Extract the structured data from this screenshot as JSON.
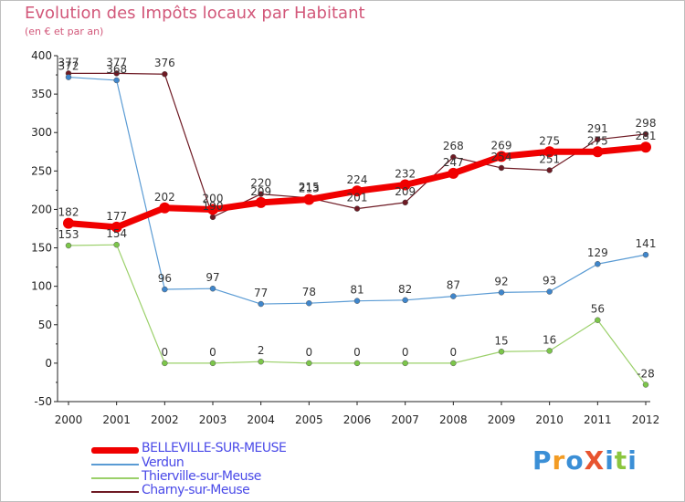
{
  "title": "Evolution des Impôts locaux par Habitant",
  "subtitle": "(en € et par an)",
  "logo": {
    "text": "ProXiti",
    "letters": [
      "P",
      "r",
      "o",
      "X",
      "i",
      "t",
      "i"
    ],
    "colors": [
      "#3b8fd6",
      "#f39c24",
      "#3b8fd6",
      "#e8542f",
      "#3b8fd6",
      "#8cc63f",
      "#3b8fd6"
    ]
  },
  "chart_data": {
    "type": "line",
    "title": "Evolution des Impôts locaux par Habitant",
    "subtitle": "(en € et par an)",
    "xlabel": "",
    "ylabel": "",
    "x": [
      "2000",
      "2001",
      "2002",
      "2003",
      "2004",
      "2005",
      "2006",
      "2007",
      "2008",
      "2009",
      "2010",
      "2011",
      "2012"
    ],
    "ylim": [
      -50,
      400
    ],
    "yticks": [
      -50,
      0,
      50,
      100,
      150,
      200,
      250,
      300,
      350,
      400
    ],
    "grid": false,
    "legend": "bottom-left",
    "series": [
      {
        "name": "Charny-sur-Meuse",
        "color": "#6e1a24",
        "point_color": "#6e1a24",
        "width": 1.2,
        "marker": 3,
        "values": [
          377,
          377,
          376,
          190,
          220,
          215,
          201,
          209,
          268,
          254,
          251,
          291,
          298
        ],
        "labels": [
          "377",
          "377",
          "376",
          "190",
          "220",
          "215",
          "201",
          "209",
          "268",
          "254",
          "251",
          "291",
          "298"
        ]
      },
      {
        "name": "Verdun",
        "color": "#5a9bd4",
        "point_color": "#3f86cc",
        "width": 1.2,
        "marker": 3,
        "values": [
          372,
          368,
          96,
          97,
          77,
          78,
          81,
          82,
          87,
          92,
          93,
          129,
          141
        ],
        "labels": [
          "372",
          "368",
          "96",
          "97",
          "77",
          "78",
          "81",
          "82",
          "87",
          "92",
          "93",
          "129",
          "141"
        ]
      },
      {
        "name": "Thierville-sur-Meuse",
        "color": "#9bd06a",
        "point_color": "#7cc64a",
        "width": 1.2,
        "marker": 3,
        "values": [
          153,
          154,
          0,
          0,
          2,
          0,
          0,
          0,
          0,
          15,
          16,
          56,
          -28
        ],
        "labels": [
          "153",
          "154",
          "0",
          "0",
          "2",
          "0",
          "0",
          "0",
          "0",
          "15",
          "16",
          "56",
          "-28"
        ]
      },
      {
        "name": "BELLEVILLE-SUR-MEUSE",
        "color": "#f00000",
        "point_color": "#f00000",
        "width": 7,
        "marker": 6,
        "values": [
          182,
          177,
          202,
          200,
          209,
          213,
          224,
          232,
          247,
          269,
          275,
          275,
          281
        ],
        "labels": [
          "182",
          "177",
          "202",
          "200",
          "209",
          "213",
          "224",
          "232",
          "247",
          "269",
          "275",
          "275",
          "281"
        ]
      }
    ]
  },
  "legend_items": [
    {
      "label": "BELLEVILLE-SUR-MEUSE",
      "color": "#f00000",
      "thickness": 7
    },
    {
      "label": "Verdun",
      "color": "#5a9bd4",
      "thickness": 2
    },
    {
      "label": "Thierville-sur-Meuse",
      "color": "#9bd06a",
      "thickness": 2
    },
    {
      "label": "Charny-sur-Meuse",
      "color": "#6e1a24",
      "thickness": 2
    }
  ]
}
